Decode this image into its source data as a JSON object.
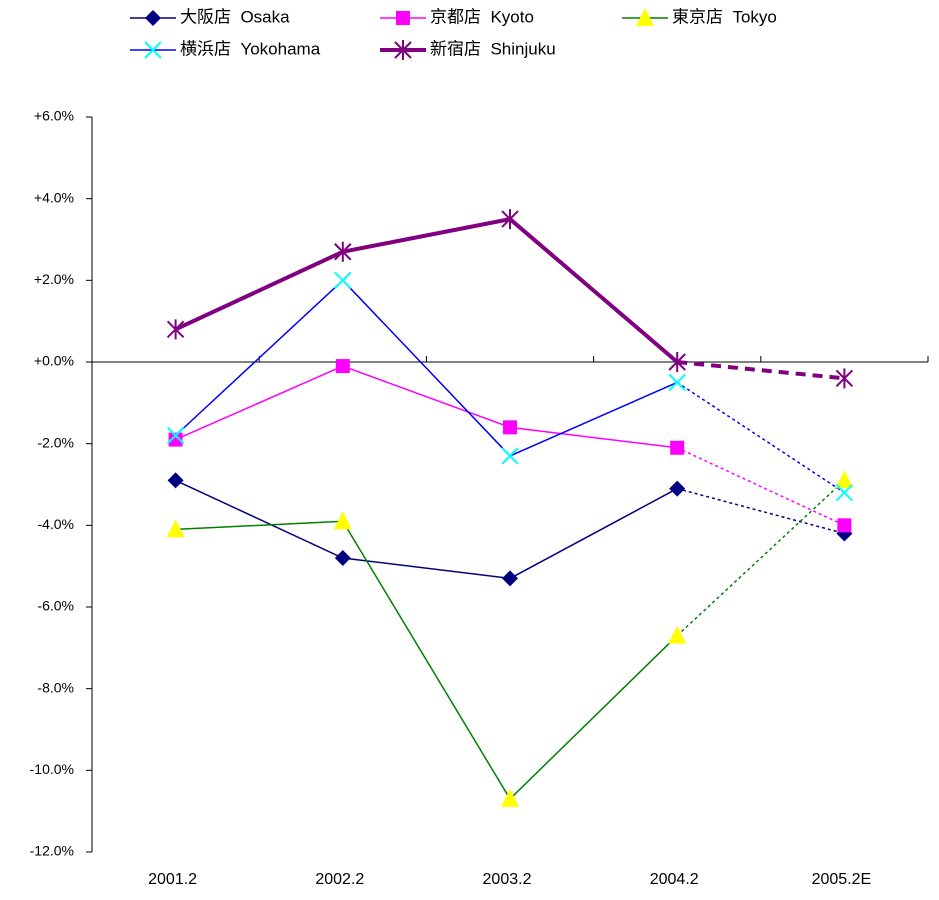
{
  "chart_data": {
    "type": "line",
    "categories": [
      "2001.2",
      "2002.2",
      "2003.2",
      "2004.2",
      "2005.2E"
    ],
    "ylim": [
      -12,
      6
    ],
    "yticks": [
      {
        "value": -12,
        "label": "-12.0%"
      },
      {
        "value": -10,
        "label": "-10.0%"
      },
      {
        "value": -8,
        "label": "-8.0%"
      },
      {
        "value": -6,
        "label": "-6.0%"
      },
      {
        "value": -4,
        "label": "-4.0%"
      },
      {
        "value": -2,
        "label": "-2.0%"
      },
      {
        "value": 0,
        "label": "+0.0%"
      },
      {
        "value": 2,
        "label": "+2.0%"
      },
      {
        "value": 4,
        "label": "+4.0%"
      },
      {
        "value": 6,
        "label": "+6.0%"
      }
    ],
    "negative_tick_color": "#ff0000",
    "dashed_last_segment": true,
    "grid": false,
    "legend": "top",
    "series": [
      {
        "name": "大阪店  Osaka",
        "color": "#000080",
        "marker": "diamond",
        "marker_color": "#000080",
        "width": 1.5,
        "values": [
          -2.9,
          -4.8,
          -5.3,
          -3.1,
          -4.2
        ]
      },
      {
        "name": "京都店  Kyoto",
        "color": "#ff00ff",
        "marker": "square",
        "marker_color": "#ff00ff",
        "width": 1.5,
        "values": [
          -1.9,
          -0.1,
          -1.6,
          -2.1,
          -4.0
        ]
      },
      {
        "name": "東京店  Tokyo",
        "color": "#008000",
        "marker": "triangle",
        "marker_color": "#ffff00",
        "width": 1.5,
        "values": [
          -4.1,
          -3.9,
          -10.7,
          -6.7,
          -2.9
        ]
      },
      {
        "name": "横浜店  Yokohama",
        "color": "#0000ff",
        "marker": "x",
        "marker_color": "#00ffff",
        "width": 1.5,
        "values": [
          -1.8,
          2.0,
          -2.3,
          -0.5,
          -3.2
        ]
      },
      {
        "name": "新宿店  Shinjuku",
        "color": "#800080",
        "marker": "star",
        "marker_color": "#800080",
        "width": 4,
        "values": [
          0.8,
          2.7,
          3.5,
          0.0,
          -0.4
        ]
      }
    ]
  }
}
